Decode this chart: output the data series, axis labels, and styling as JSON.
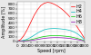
{
  "title": "",
  "xlabel": "Speed [rpm]",
  "ylabel": "Amplitude [%]",
  "xlim": [
    0,
    2000
  ],
  "ylim": [
    0,
    850
  ],
  "yticks": [
    0,
    100,
    200,
    300,
    400,
    500,
    600,
    700,
    800
  ],
  "xticks": [
    0,
    200,
    400,
    600,
    800,
    1000,
    1200,
    1400,
    1600,
    1800,
    2000
  ],
  "grid": true,
  "background_color": "#e8e8e8",
  "plot_background": "#ffffff",
  "lines": [
    {
      "label": "H2",
      "color": "#ff0000",
      "x": [
        0,
        100,
        200,
        300,
        400,
        500,
        600,
        700,
        800,
        900,
        1000,
        1100,
        1200,
        1300,
        1400,
        1500,
        1600,
        1700,
        1800,
        1900,
        2000
      ],
      "y": [
        0,
        40,
        130,
        260,
        410,
        560,
        680,
        770,
        820,
        840,
        830,
        800,
        760,
        710,
        650,
        580,
        500,
        400,
        295,
        185,
        65
      ]
    },
    {
      "label": "H4",
      "color": "#00bbbb",
      "x": [
        0,
        100,
        200,
        300,
        400,
        500,
        600,
        700,
        800,
        900,
        1000,
        1100,
        1200,
        1300,
        1400,
        1500,
        1600,
        1700,
        1800,
        1900,
        2000
      ],
      "y": [
        0,
        8,
        22,
        48,
        85,
        130,
        175,
        215,
        248,
        265,
        272,
        275,
        272,
        266,
        258,
        246,
        228,
        198,
        158,
        102,
        35
      ]
    },
    {
      "label": "H6",
      "color": "#00cc00",
      "x": [
        0,
        100,
        200,
        300,
        400,
        500,
        600,
        700,
        800,
        900,
        1000,
        1100,
        1200,
        1300,
        1400,
        1500,
        1600,
        1700,
        1800,
        1900,
        2000
      ],
      "y": [
        0,
        4,
        10,
        20,
        35,
        52,
        70,
        88,
        103,
        113,
        120,
        123,
        122,
        118,
        112,
        104,
        93,
        78,
        60,
        38,
        13
      ]
    },
    {
      "label": "H8",
      "color": "#8800aa",
      "x": [
        0,
        100,
        200,
        300,
        400,
        500,
        600,
        700,
        800,
        900,
        1000,
        1100,
        1200,
        1300,
        1400,
        1500,
        1600,
        1700,
        1800,
        1900,
        2000
      ],
      "y": [
        0,
        2,
        5,
        10,
        18,
        28,
        40,
        52,
        62,
        70,
        75,
        78,
        78,
        76,
        72,
        66,
        58,
        48,
        36,
        22,
        7
      ]
    }
  ],
  "legend_fontsize": 3.5,
  "axis_fontsize": 3.5,
  "tick_fontsize": 3.0
}
